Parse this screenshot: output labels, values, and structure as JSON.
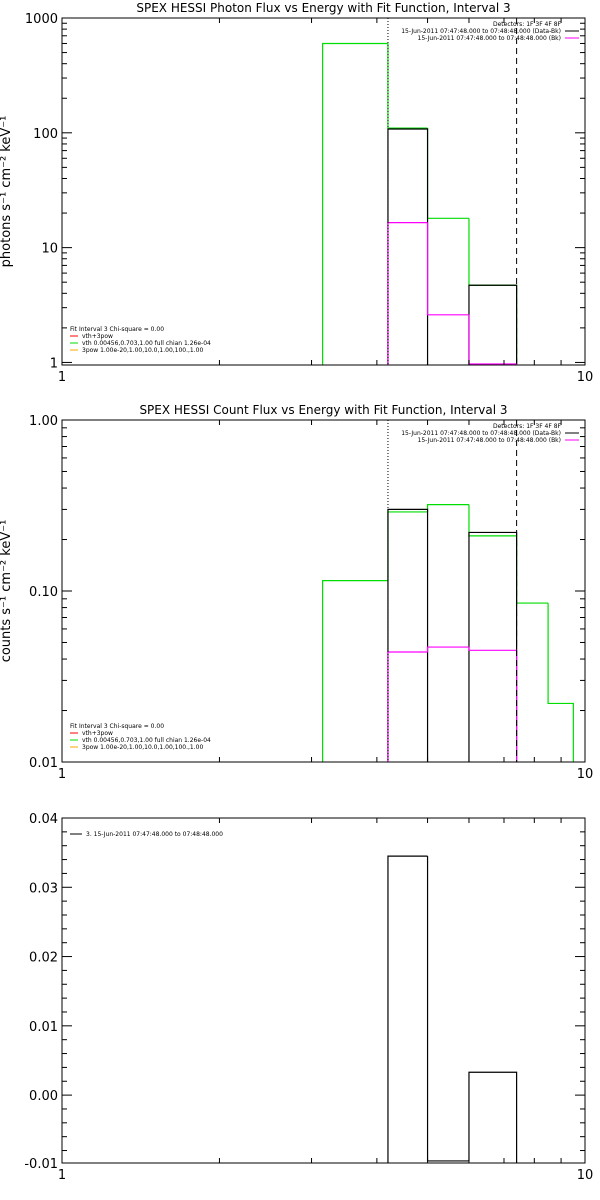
{
  "chart_data": [
    {
      "type": "step",
      "title": "SPEX HESSI Photon Flux vs Energy with Fit Function, Interval 3",
      "ylabel": "photons s⁻¹ cm⁻² keV⁻¹",
      "xscale": "log",
      "yscale": "log",
      "xlim": [
        1,
        10
      ],
      "ylim": [
        0.95,
        1000
      ],
      "xticks": [
        "1",
        "10"
      ],
      "yticks": [
        {
          "v": 1,
          "label": "1"
        },
        {
          "v": 10,
          "label": "10"
        },
        {
          "v": 100,
          "label": "100"
        },
        {
          "v": 1000,
          "label": "1000"
        }
      ],
      "vlines": [
        {
          "x": 4.2,
          "style": "dotted"
        },
        {
          "x": 7.4,
          "style": "dashed"
        }
      ],
      "legend_tr": [
        {
          "text": "Detectors: 1F 3F 4F 8F",
          "color": null
        },
        {
          "text": "15-Jun-2011 07:47:48.000 to 07:48:48.000 (Data-Bk)",
          "color": "#000000"
        },
        {
          "text": "15-Jun-2011 07:47:48.000 to 07:48:48.000 (Bk)",
          "color": "#ff00ff"
        }
      ],
      "legend_bl": [
        {
          "text": "Fit Interval 3   Chi-square = 0.00",
          "color": null
        },
        {
          "text": "vth+3pow",
          "color": "#ff0000"
        },
        {
          "text": "vth 0.00456,0.703,1.00   full chian 1.26e-04",
          "color": "#00dd00"
        },
        {
          "text": "3pow 1.00e-20,1.00,10.0,1.00,100.,1.00",
          "color": "#ffaa00"
        }
      ],
      "series": [
        {
          "color": "#00dd00",
          "segments": [
            {
              "x0": 3.15,
              "x1": 4.2,
              "y": 600
            },
            {
              "x0": 4.2,
              "x1": 5.0,
              "y": 110
            },
            {
              "x0": 5.0,
              "x1": 6.0,
              "y": 18
            },
            {
              "x0": 6.0,
              "x1": 7.4,
              "y": 4.7
            }
          ]
        },
        {
          "color": "#000000",
          "segments": [
            {
              "x0": 4.2,
              "x1": 5.0,
              "y": 108
            },
            {
              "x0": 6.0,
              "x1": 7.4,
              "y": 4.7
            }
          ]
        },
        {
          "color": "#ff00ff",
          "segments": [
            {
              "x0": 4.2,
              "x1": 5.0,
              "y": 16.5
            },
            {
              "x0": 5.0,
              "x1": 6.0,
              "y": 2.6
            },
            {
              "x0": 6.0,
              "x1": 7.4,
              "y": 0.97
            }
          ]
        }
      ]
    },
    {
      "type": "step",
      "title": "SPEX HESSI Count Flux vs Energy with Fit Function, Interval 3",
      "ylabel": "counts s⁻¹ cm⁻² keV⁻¹",
      "xscale": "log",
      "yscale": "log",
      "xlim": [
        1,
        10
      ],
      "ylim": [
        0.01,
        1.0
      ],
      "xticks": [
        "1",
        "10"
      ],
      "yticks": [
        {
          "v": 0.01,
          "label": "0.01"
        },
        {
          "v": 0.1,
          "label": "0.10"
        },
        {
          "v": 1.0,
          "label": "1.00"
        }
      ],
      "vlines": [
        {
          "x": 4.2,
          "style": "dotted"
        },
        {
          "x": 7.4,
          "style": "dashed"
        }
      ],
      "legend_tr": [
        {
          "text": "Detectors: 1F 3F 4F 8F",
          "color": null
        },
        {
          "text": "15-Jun-2011 07:47:48.000 to 07:48:48.000 (Data-Bk)",
          "color": "#000000"
        },
        {
          "text": "15-Jun-2011 07:47:48.000 to 07:48:48.000 (Bk)",
          "color": "#ff00ff"
        }
      ],
      "legend_bl": [
        {
          "text": "Fit Interval 3   Chi-square = 0.00",
          "color": null
        },
        {
          "text": "vth+3pow",
          "color": "#ff0000"
        },
        {
          "text": "vth 0.00456,0.703,1.00   full chian 1.26e-04",
          "color": "#00dd00"
        },
        {
          "text": "3pow 1.00e-20,1.00,10.0,1.00,100.,1.00",
          "color": "#ffaa00"
        }
      ],
      "series": [
        {
          "color": "#00dd00",
          "segments": [
            {
              "x0": 3.15,
              "x1": 4.2,
              "y": 0.115
            },
            {
              "x0": 4.2,
              "x1": 5.0,
              "y": 0.29
            },
            {
              "x0": 5.0,
              "x1": 6.0,
              "y": 0.32
            },
            {
              "x0": 6.0,
              "x1": 7.4,
              "y": 0.21
            },
            {
              "x0": 7.4,
              "x1": 8.5,
              "y": 0.085
            },
            {
              "x0": 8.5,
              "x1": 9.5,
              "y": 0.022
            }
          ]
        },
        {
          "color": "#000000",
          "segments": [
            {
              "x0": 4.2,
              "x1": 5.0,
              "y": 0.3
            },
            {
              "x0": 6.0,
              "x1": 7.4,
              "y": 0.22
            }
          ]
        },
        {
          "color": "#ff00ff",
          "segments": [
            {
              "x0": 4.2,
              "x1": 5.0,
              "y": 0.044
            },
            {
              "x0": 5.0,
              "x1": 6.0,
              "y": 0.047
            },
            {
              "x0": 6.0,
              "x1": 7.4,
              "y": 0.045
            }
          ]
        }
      ]
    },
    {
      "type": "step",
      "title": "",
      "ylabel": "",
      "xscale": "log",
      "yscale": "linear",
      "xlim": [
        1,
        10
      ],
      "ylim": [
        -0.0098,
        0.04
      ],
      "xticks": [
        "1",
        "10"
      ],
      "yticks": [
        {
          "v": -0.01,
          "label": "-0.01"
        },
        {
          "v": 0.0,
          "label": "0.00"
        },
        {
          "v": 0.01,
          "label": "0.01"
        },
        {
          "v": 0.02,
          "label": "0.02"
        },
        {
          "v": 0.03,
          "label": "0.03"
        },
        {
          "v": 0.04,
          "label": "0.04"
        }
      ],
      "vlines": [],
      "legend_tr": [],
      "legend_bl": [],
      "legend_tl": [
        {
          "text": "3. 15-Jun-2011 07:47:48.000 to 07:48:48.000",
          "color": "#000000"
        }
      ],
      "series": [
        {
          "color": "#000000",
          "segments": [
            {
              "x0": 4.2,
              "x1": 5.0,
              "y": 0.0345
            },
            {
              "x0": 5.0,
              "x1": 6.0,
              "y": -0.0095
            },
            {
              "x0": 6.0,
              "x1": 7.4,
              "y": 0.0033
            }
          ]
        }
      ]
    }
  ]
}
